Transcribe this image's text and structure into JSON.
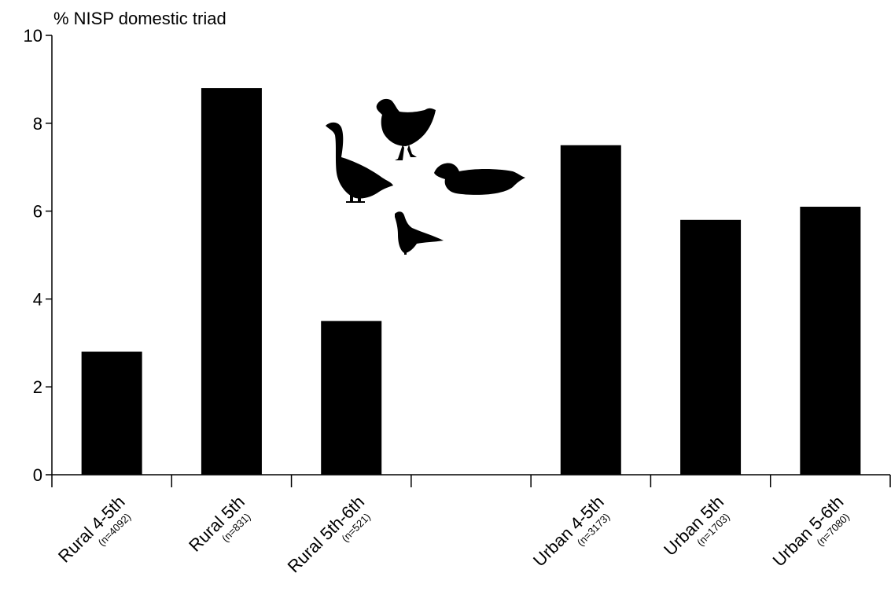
{
  "chart_data": {
    "type": "bar",
    "ylabel": "% NISP domestic triad",
    "ylim": [
      0,
      10
    ],
    "yticks": [
      0,
      2,
      4,
      6,
      8,
      10
    ],
    "categories": [
      {
        "name": "Rural 4-5th",
        "sample": "(n=4092)"
      },
      {
        "name": "Rural 5th",
        "sample": "(n=831)"
      },
      {
        "name": "Rural 5th-6th",
        "sample": "(n=521)"
      },
      {
        "name": "",
        "sample": ""
      },
      {
        "name": "Urban 4-5th",
        "sample": "(n=3173)"
      },
      {
        "name": "Urban 5th",
        "sample": "(n=1703)"
      },
      {
        "name": "Urban 5-6th",
        "sample": "(n=7080)"
      }
    ],
    "values": [
      2.8,
      8.8,
      3.5,
      null,
      7.5,
      5.8,
      6.1
    ],
    "bar_color": "#000000",
    "grid": false,
    "legend": "none",
    "decorations": [
      "chicken-icon",
      "goose-icon",
      "duck-icon",
      "pigeon-icon"
    ]
  }
}
